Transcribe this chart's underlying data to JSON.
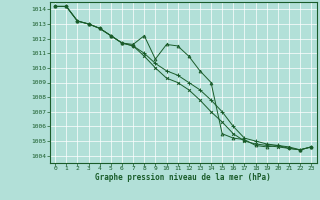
{
  "title": "Graphe pression niveau de la mer (hPa)",
  "bg_color": "#b2e0d8",
  "grid_color": "#ffffff",
  "line_color": "#1a5c2a",
  "marker_color": "#1a5c2a",
  "x_ticks": [
    0,
    1,
    2,
    3,
    4,
    5,
    6,
    7,
    8,
    9,
    10,
    11,
    12,
    13,
    14,
    15,
    16,
    17,
    18,
    19,
    20,
    21,
    22,
    23
  ],
  "y_ticks": [
    1004,
    1005,
    1006,
    1007,
    1008,
    1009,
    1010,
    1011,
    1012,
    1013,
    1014
  ],
  "ylim": [
    1003.5,
    1014.5
  ],
  "xlim": [
    -0.5,
    23.5
  ],
  "series": [
    [
      1014.2,
      1014.2,
      1013.2,
      1013.0,
      1012.7,
      1012.2,
      1011.7,
      1011.6,
      1012.2,
      1010.6,
      1011.6,
      1011.5,
      1010.8,
      1009.8,
      1009.0,
      1005.5,
      1005.2,
      1005.1,
      1004.7,
      1004.6,
      1004.7,
      1004.6,
      1004.4,
      1004.6
    ],
    [
      1014.2,
      1014.2,
      1013.2,
      1013.0,
      1012.7,
      1012.2,
      1011.7,
      1011.5,
      1011.0,
      1010.3,
      1009.8,
      1009.5,
      1009.0,
      1008.5,
      1007.8,
      1007.0,
      1006.0,
      1005.2,
      1005.0,
      1004.8,
      1004.7,
      1004.5,
      1004.4,
      1004.6
    ],
    [
      1014.2,
      1014.2,
      1013.2,
      1013.0,
      1012.7,
      1012.2,
      1011.7,
      1011.5,
      1010.8,
      1010.0,
      1009.3,
      1009.0,
      1008.5,
      1007.8,
      1007.0,
      1006.3,
      1005.5,
      1005.0,
      1004.8,
      1004.7,
      1004.6,
      1004.5,
      1004.4,
      1004.6
    ]
  ]
}
